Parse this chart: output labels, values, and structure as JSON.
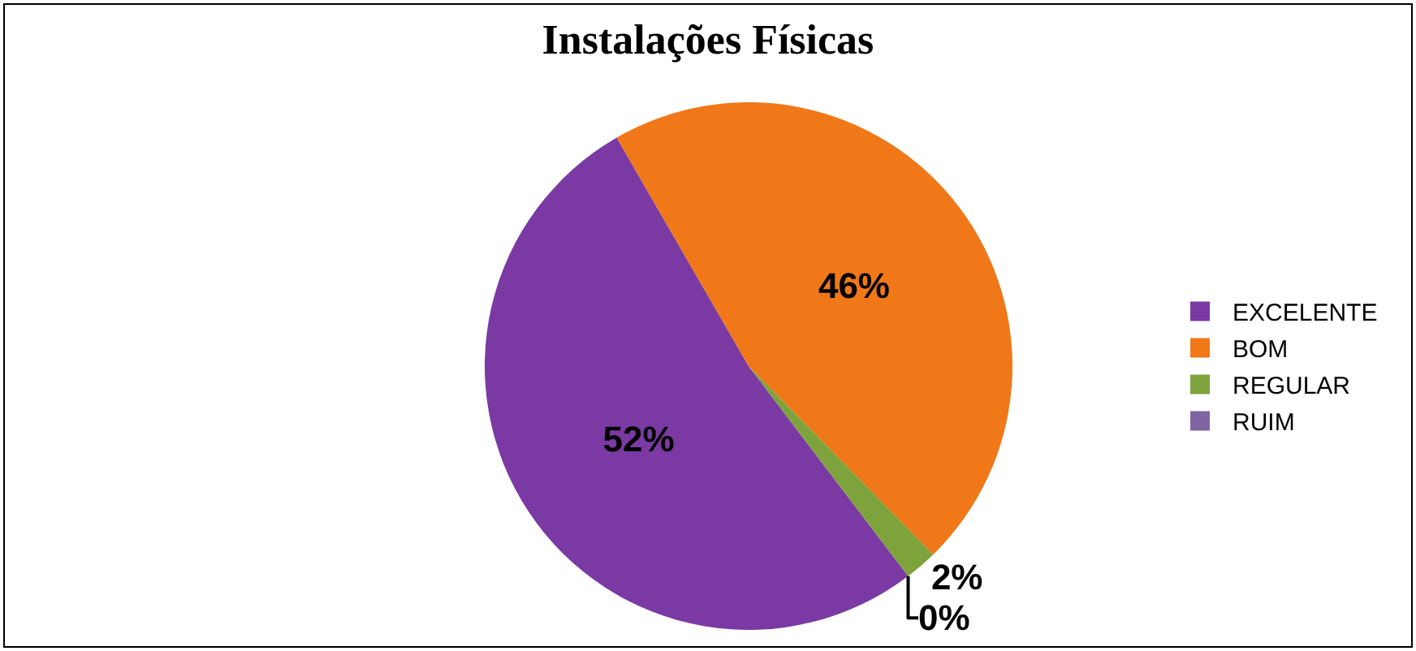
{
  "chart_data": {
    "type": "pie",
    "title": "Instalações Físicas",
    "categories": [
      "EXCELENTE",
      "BOM",
      "REGULAR",
      "RUIM"
    ],
    "values": [
      52,
      46,
      2,
      0
    ],
    "colors": [
      "#7b3aa3",
      "#f07818",
      "#7fa33c",
      "#8064a2"
    ],
    "value_labels": [
      "52%",
      "46%",
      "2%",
      "0%"
    ],
    "legend": "right"
  }
}
